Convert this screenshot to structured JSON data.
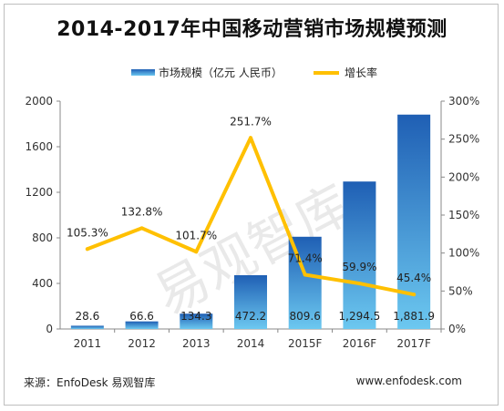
{
  "title": "2014-2017年中国移动营销市场规模预测",
  "footer": {
    "source": "来源：EnfoDesk 易观智库",
    "url": "www.enfodesk.com"
  },
  "watermark": "易观智库",
  "chart_data": {
    "type": "bar+line",
    "categories": [
      "2011",
      "2012",
      "2013",
      "2014",
      "2015F",
      "2016F",
      "2017F"
    ],
    "series": [
      {
        "name": "市场规模（亿元 人民币）",
        "type": "bar",
        "axis": "left",
        "values": [
          28.6,
          66.6,
          134.3,
          472.2,
          809.6,
          1294.5,
          1881.9
        ],
        "labels": [
          "28.6",
          "66.6",
          "134.3",
          "472.2",
          "809.6",
          "1,294.5",
          "1,881.9"
        ]
      },
      {
        "name": "增长率",
        "type": "line",
        "axis": "right",
        "values": [
          105.3,
          132.8,
          101.7,
          251.7,
          71.4,
          59.9,
          45.4
        ],
        "labels": [
          "105.3%",
          "132.8%",
          "101.7%",
          "251.7%",
          "71.4%",
          "59.9%",
          "45.4%"
        ]
      }
    ],
    "y_left": {
      "ylim": [
        0,
        2000
      ],
      "ticks": [
        "0",
        "400",
        "800",
        "1200",
        "1600",
        "2000"
      ]
    },
    "y_right": {
      "ylim": [
        0,
        300
      ],
      "ticks": [
        "0%",
        "50%",
        "100%",
        "150%",
        "200%",
        "250%",
        "300%"
      ]
    },
    "grid": false,
    "legend": "top",
    "colors": {
      "bar_top": "#1f5fb4",
      "bar_bottom": "#6cc8f0",
      "line": "#ffc000"
    }
  }
}
